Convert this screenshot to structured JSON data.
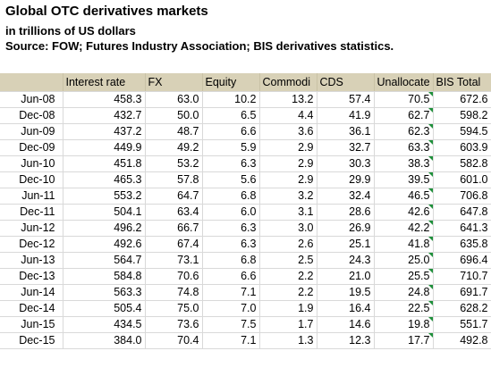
{
  "title": "Global OTC derivatives markets",
  "subtitle": "in trillions of US dollars",
  "source": "Source: FOW; Futures Industry Association; BIS derivatives statistics.",
  "chart_data": {
    "type": "table",
    "columns": [
      "",
      "Interest rate",
      "FX",
      "Equity",
      "Commodi",
      "CDS",
      "Unallocate",
      "BIS Total"
    ],
    "rows": [
      [
        "Jun-08",
        "458.3",
        "63.0",
        "10.2",
        "13.2",
        "57.4",
        "70.5",
        "672.6"
      ],
      [
        "Dec-08",
        "432.7",
        "50.0",
        "6.5",
        "4.4",
        "41.9",
        "62.7",
        "598.2"
      ],
      [
        "Jun-09",
        "437.2",
        "48.7",
        "6.6",
        "3.6",
        "36.1",
        "62.3",
        "594.5"
      ],
      [
        "Dec-09",
        "449.9",
        "49.2",
        "5.9",
        "2.9",
        "32.7",
        "63.3",
        "603.9"
      ],
      [
        "Jun-10",
        "451.8",
        "53.2",
        "6.3",
        "2.9",
        "30.3",
        "38.3",
        "582.8"
      ],
      [
        "Dec-10",
        "465.3",
        "57.8",
        "5.6",
        "2.9",
        "29.9",
        "39.5",
        "601.0"
      ],
      [
        "Jun-11",
        "553.2",
        "64.7",
        "6.8",
        "3.2",
        "32.4",
        "46.5",
        "706.8"
      ],
      [
        "Dec-11",
        "504.1",
        "63.4",
        "6.0",
        "3.1",
        "28.6",
        "42.6",
        "647.8"
      ],
      [
        "Jun-12",
        "496.2",
        "66.7",
        "6.3",
        "3.0",
        "26.9",
        "42.2",
        "641.3"
      ],
      [
        "Dec-12",
        "492.6",
        "67.4",
        "6.3",
        "2.6",
        "25.1",
        "41.8",
        "635.8"
      ],
      [
        "Jun-13",
        "564.7",
        "73.1",
        "6.8",
        "2.5",
        "24.3",
        "25.0",
        "696.4"
      ],
      [
        "Dec-13",
        "584.8",
        "70.6",
        "6.6",
        "2.2",
        "21.0",
        "25.5",
        "710.7"
      ],
      [
        "Jun-14",
        "563.3",
        "74.8",
        "7.1",
        "2.2",
        "19.5",
        "24.8",
        "691.7"
      ],
      [
        "Dec-14",
        "505.4",
        "75.0",
        "7.0",
        "1.9",
        "16.4",
        "22.5",
        "628.2"
      ],
      [
        "Jun-15",
        "434.5",
        "73.6",
        "7.5",
        "1.7",
        "14.6",
        "19.8",
        "551.7"
      ],
      [
        "Dec-15",
        "384.0",
        "70.4",
        "7.1",
        "1.3",
        "12.3",
        "17.7",
        "492.8"
      ]
    ],
    "grid": true,
    "header_color": "#d8d1b7",
    "flag_color": "#1e8f3a"
  }
}
